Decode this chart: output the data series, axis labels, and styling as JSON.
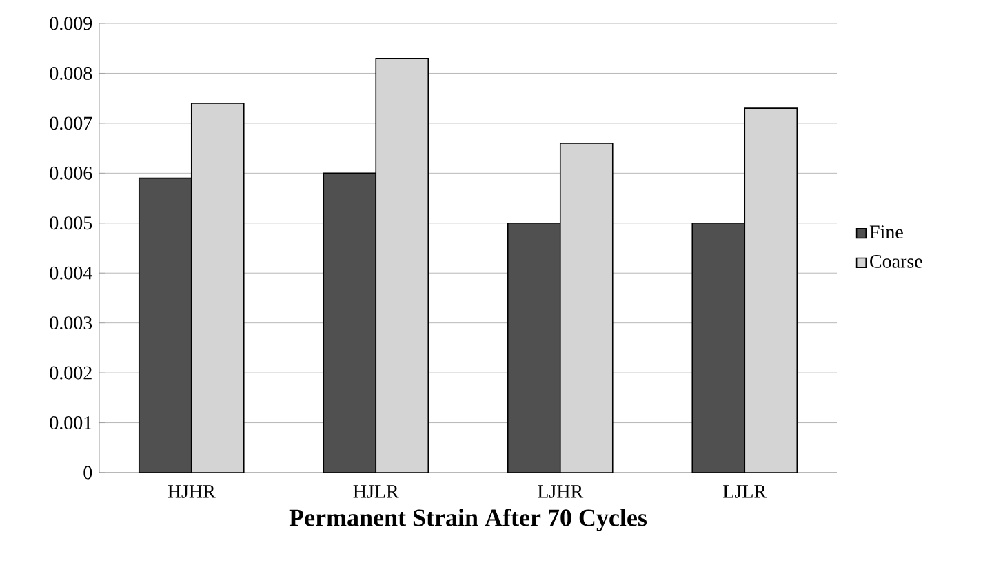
{
  "chart_data": {
    "type": "bar",
    "xlabel": "Permanent Strain After 70 Cycles",
    "categories": [
      "HJHR",
      "HJLR",
      "LJHR",
      "LJLR"
    ],
    "series": [
      {
        "name": "Fine",
        "color": "#505050",
        "values": [
          0.0059,
          0.006,
          0.005,
          0.005
        ]
      },
      {
        "name": "Coarse",
        "color": "#d4d4d4",
        "values": [
          0.0074,
          0.0083,
          0.0066,
          0.0073
        ]
      }
    ],
    "ylim": [
      0,
      0.009
    ],
    "yticks": [
      0,
      0.001,
      0.002,
      0.003,
      0.004,
      0.005,
      0.006,
      0.007,
      0.008,
      0.009
    ],
    "grid": "y",
    "legend": "right"
  }
}
